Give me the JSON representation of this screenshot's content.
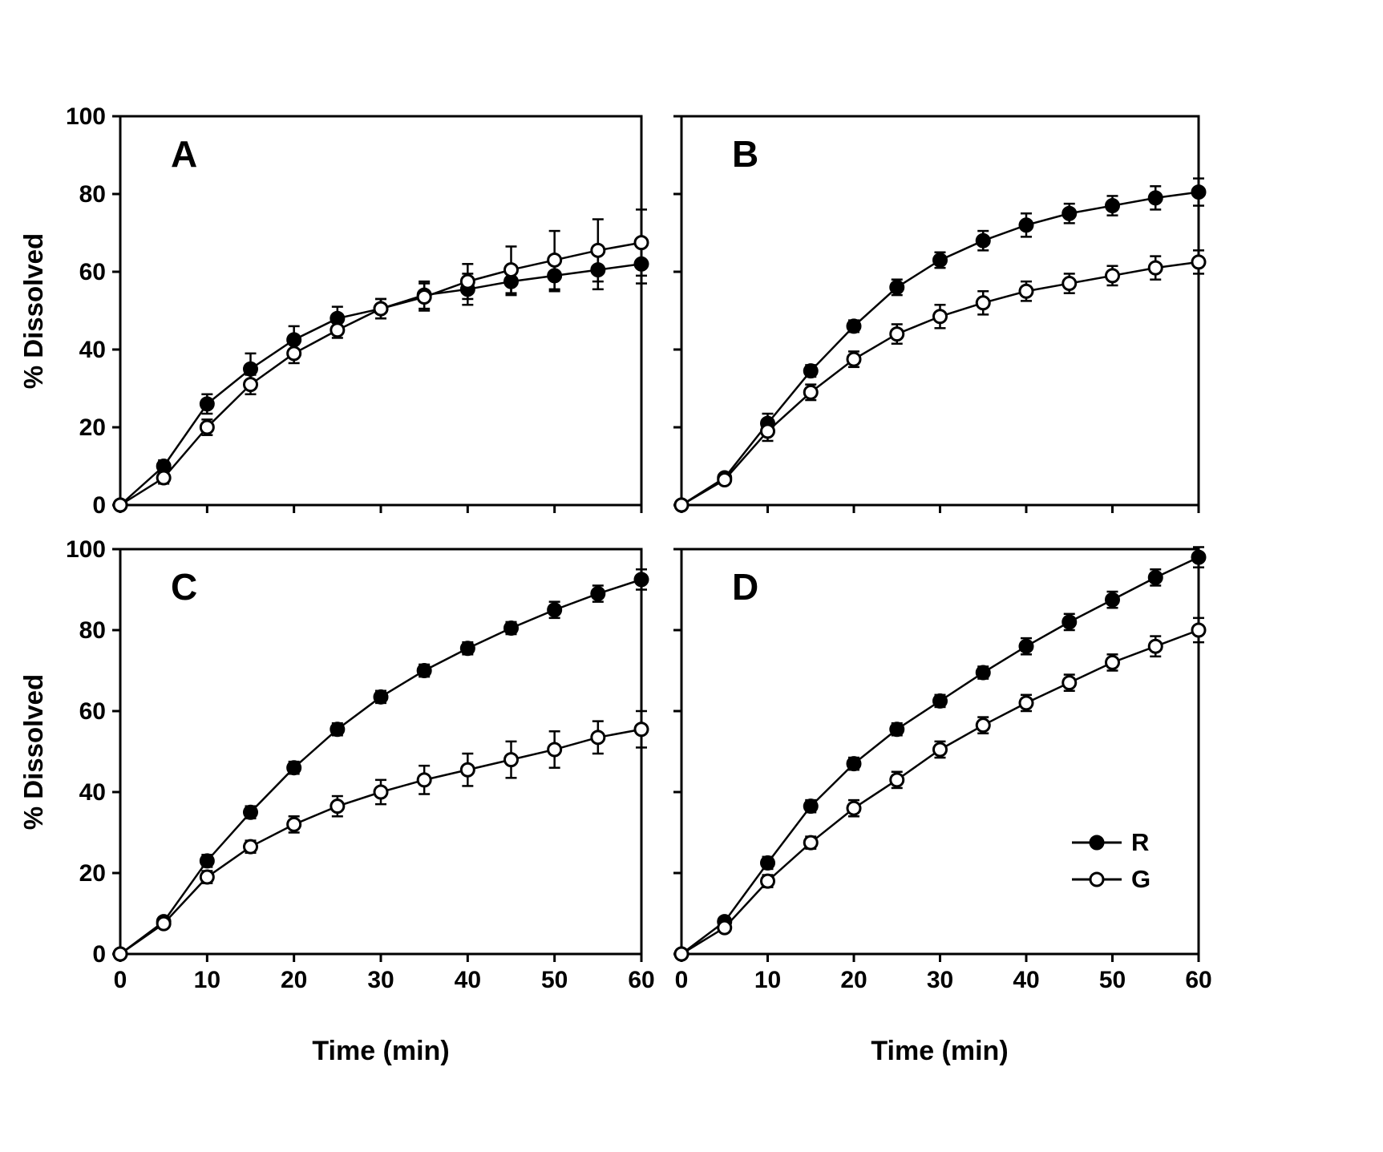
{
  "figure": {
    "background": "#ffffff",
    "axis_color": "#000000",
    "ylabel": "% Dissolved",
    "xlabel": "Time (min)",
    "x_ticks": [
      0,
      10,
      20,
      30,
      40,
      50,
      60
    ],
    "y_ticks": [
      0,
      20,
      40,
      60,
      80,
      100
    ],
    "legend": {
      "position": "bottom-right-of-panel-D",
      "items": [
        {
          "label": "R",
          "marker": "filled-circle",
          "color": "#000000"
        },
        {
          "label": "G",
          "marker": "open-circle",
          "color": "#000000"
        }
      ]
    }
  },
  "chart_data": [
    {
      "type": "line",
      "title": "A",
      "xlabel": "Time (min)",
      "ylabel": "% Dissolved",
      "xlim": [
        0,
        60
      ],
      "ylim": [
        0,
        100
      ],
      "grid": false,
      "x": [
        0,
        5,
        10,
        15,
        20,
        25,
        30,
        35,
        40,
        45,
        50,
        55,
        60
      ],
      "series": [
        {
          "name": "R",
          "marker": "filled-circle",
          "values": [
            0,
            10,
            26,
            35,
            42.5,
            48,
            50.5,
            54,
            55.5,
            57.5,
            59,
            60.5,
            62
          ],
          "errors": [
            0,
            1.5,
            2.5,
            4,
            3.5,
            3,
            2.5,
            3.5,
            4,
            3.5,
            4,
            5,
            5
          ]
        },
        {
          "name": "G",
          "marker": "open-circle",
          "values": [
            0,
            7,
            20,
            31,
            39,
            45,
            50.5,
            53.5,
            57.5,
            60.5,
            63,
            65.5,
            67.5
          ],
          "errors": [
            0,
            1.5,
            2,
            2.5,
            2.5,
            2,
            2.5,
            3.5,
            4.5,
            6,
            7.5,
            8,
            8.5
          ]
        }
      ]
    },
    {
      "type": "line",
      "title": "B",
      "xlabel": "Time (min)",
      "ylabel": "% Dissolved",
      "xlim": [
        0,
        60
      ],
      "ylim": [
        0,
        100
      ],
      "grid": false,
      "x": [
        0,
        5,
        10,
        15,
        20,
        25,
        30,
        35,
        40,
        45,
        50,
        55,
        60
      ],
      "series": [
        {
          "name": "R",
          "marker": "filled-circle",
          "values": [
            0,
            7,
            21,
            34.5,
            46,
            56,
            63,
            68,
            72,
            75,
            77,
            79,
            80.5
          ],
          "errors": [
            0,
            1,
            2.5,
            1.5,
            1.5,
            2,
            2,
            2.5,
            3,
            2.5,
            2.5,
            3,
            3.5
          ]
        },
        {
          "name": "G",
          "marker": "open-circle",
          "values": [
            0,
            6.5,
            19,
            29,
            37.5,
            44,
            48.5,
            52,
            55,
            57,
            59,
            61,
            62.5
          ],
          "errors": [
            0,
            1,
            2.5,
            2,
            2,
            2.5,
            3,
            3,
            2.5,
            2.5,
            2.5,
            3,
            3
          ]
        }
      ]
    },
    {
      "type": "line",
      "title": "C",
      "xlabel": "Time (min)",
      "ylabel": "% Dissolved",
      "xlim": [
        0,
        60
      ],
      "ylim": [
        0,
        100
      ],
      "grid": false,
      "x": [
        0,
        5,
        10,
        15,
        20,
        25,
        30,
        35,
        40,
        45,
        50,
        55,
        60
      ],
      "series": [
        {
          "name": "R",
          "marker": "filled-circle",
          "values": [
            0,
            8,
            23,
            35,
            46,
            55.5,
            63.5,
            70,
            75.5,
            80.5,
            85,
            89,
            92.5
          ],
          "errors": [
            0,
            1,
            1.5,
            1.5,
            1.5,
            1.5,
            1.5,
            1.5,
            1.5,
            1.5,
            2,
            2,
            2.5
          ]
        },
        {
          "name": "G",
          "marker": "open-circle",
          "values": [
            0,
            7.5,
            19,
            26.5,
            32,
            36.5,
            40,
            43,
            45.5,
            48,
            50.5,
            53.5,
            55.5
          ],
          "errors": [
            0,
            1,
            1.5,
            1.5,
            2,
            2.5,
            3,
            3.5,
            4,
            4.5,
            4.5,
            4,
            4.5
          ]
        }
      ]
    },
    {
      "type": "line",
      "title": "D",
      "xlabel": "Time (min)",
      "ylabel": "% Dissolved",
      "xlim": [
        0,
        60
      ],
      "ylim": [
        0,
        100
      ],
      "grid": false,
      "x": [
        0,
        5,
        10,
        15,
        20,
        25,
        30,
        35,
        40,
        45,
        50,
        55,
        60
      ],
      "series": [
        {
          "name": "R",
          "marker": "filled-circle",
          "values": [
            0,
            8,
            22.5,
            36.5,
            47,
            55.5,
            62.5,
            69.5,
            76,
            82,
            87.5,
            93,
            98
          ],
          "errors": [
            0,
            1,
            1.5,
            1.5,
            1.5,
            1.5,
            1.5,
            1.5,
            2,
            2,
            2,
            2,
            2.5
          ]
        },
        {
          "name": "G",
          "marker": "open-circle",
          "values": [
            0,
            6.5,
            18,
            27.5,
            36,
            43,
            50.5,
            56.5,
            62,
            67,
            72,
            76,
            80
          ],
          "errors": [
            0,
            1,
            1.5,
            1.5,
            2,
            2,
            2,
            2,
            2,
            2,
            2,
            2.5,
            3
          ]
        }
      ]
    }
  ]
}
